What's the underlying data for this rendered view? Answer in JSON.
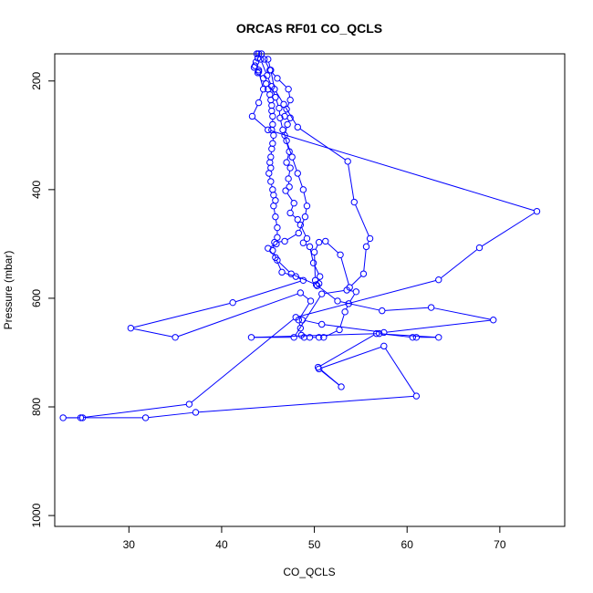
{
  "chart_data": {
    "type": "line",
    "title": "ORCAS RF01 CO_QCLS",
    "xlabel": "CO_QCLS",
    "ylabel": "Pressure (mbar)",
    "xlim": [
      22,
      77
    ],
    "ylim": [
      1020,
      150
    ],
    "y_reversed": true,
    "x_ticks": [
      30,
      40,
      50,
      60,
      70
    ],
    "y_ticks": [
      200,
      400,
      600,
      800,
      1000
    ],
    "grid": false,
    "legend": "none",
    "color": "#0000ff",
    "series": [
      {
        "points": [
          [
            43.8,
            150
          ],
          [
            43.9,
            158
          ],
          [
            43.7,
            165
          ],
          [
            43.6,
            172
          ],
          [
            44.0,
            180
          ],
          [
            43.9,
            185
          ],
          [
            44.5,
            195
          ],
          [
            44.8,
            205
          ],
          [
            45.0,
            215
          ],
          [
            45.2,
            225
          ],
          [
            45.3,
            235
          ],
          [
            45.4,
            245
          ],
          [
            45.4,
            255
          ],
          [
            45.5,
            265
          ],
          [
            45.5,
            280
          ],
          [
            45.4,
            290
          ],
          [
            45.6,
            300
          ],
          [
            45.5,
            315
          ],
          [
            45.4,
            325
          ],
          [
            45.3,
            340
          ],
          [
            45.2,
            350
          ],
          [
            45.3,
            360
          ],
          [
            45.1,
            370
          ],
          [
            45.3,
            385
          ],
          [
            45.5,
            400
          ],
          [
            45.6,
            410
          ],
          [
            45.8,
            420
          ],
          [
            45.6,
            430
          ],
          [
            45.8,
            450
          ],
          [
            46.0,
            470
          ],
          [
            46.0,
            488
          ],
          [
            45.9,
            500
          ],
          [
            45.0,
            508
          ],
          [
            45.8,
            525
          ],
          [
            46.5,
            552
          ],
          [
            48.0,
            560
          ],
          [
            48.8,
            567
          ],
          [
            41.2,
            608
          ],
          [
            30.2,
            655
          ],
          [
            35.0,
            672
          ],
          [
            48.5,
            590
          ],
          [
            49.6,
            605
          ],
          [
            48.3,
            640
          ],
          [
            48.5,
            655
          ],
          [
            48.6,
            668
          ],
          [
            48.9,
            672
          ],
          [
            49.5,
            672
          ],
          [
            50.5,
            672
          ],
          [
            51.0,
            672
          ],
          [
            52.7,
            658
          ],
          [
            53.3,
            625
          ],
          [
            53.7,
            610
          ],
          [
            54.5,
            588
          ],
          [
            53.5,
            585
          ],
          [
            50.8,
            592
          ],
          [
            47.8,
            672
          ],
          [
            43.2,
            672
          ],
          [
            57.0,
            665
          ],
          [
            60.6,
            672
          ],
          [
            61.0,
            672
          ],
          [
            63.4,
            672
          ],
          [
            56.7,
            665
          ],
          [
            50.4,
            727
          ],
          [
            52.9,
            763
          ],
          [
            50.5,
            730
          ],
          [
            57.5,
            688
          ],
          [
            61.0,
            780
          ],
          [
            37.2,
            810
          ],
          [
            31.8,
            820
          ],
          [
            25.0,
            820
          ],
          [
            22.9,
            820
          ],
          [
            24.8,
            820
          ],
          [
            36.5,
            795
          ],
          [
            48.0,
            635
          ],
          [
            63.4,
            566
          ],
          [
            67.8,
            507
          ],
          [
            74.0,
            440
          ],
          [
            45.0,
            290
          ],
          [
            43.3,
            265
          ],
          [
            44.0,
            240
          ],
          [
            44.5,
            215
          ],
          [
            44.0,
            183
          ],
          [
            43.5,
            175
          ]
        ]
      },
      {
        "points": [
          [
            44.3,
            150
          ],
          [
            44.6,
            160
          ],
          [
            45.2,
            180
          ],
          [
            46.0,
            195
          ],
          [
            47.2,
            215
          ],
          [
            47.4,
            235
          ],
          [
            47.0,
            252
          ],
          [
            46.8,
            265
          ],
          [
            47.4,
            268
          ],
          [
            47.1,
            280
          ],
          [
            46.8,
            300
          ],
          [
            47.3,
            330
          ],
          [
            47.0,
            350
          ],
          [
            47.4,
            360
          ],
          [
            47.2,
            380
          ],
          [
            47.3,
            395
          ],
          [
            46.9,
            402
          ],
          [
            47.8,
            425
          ],
          [
            47.4,
            443
          ],
          [
            48.2,
            455
          ],
          [
            48.5,
            465
          ],
          [
            49.2,
            490
          ],
          [
            48.8,
            498
          ],
          [
            49.5,
            505
          ],
          [
            49.9,
            535
          ],
          [
            50.6,
            560
          ],
          [
            50.5,
            573
          ],
          [
            50.3,
            577
          ],
          [
            50.1,
            567
          ],
          [
            50.0,
            515
          ],
          [
            50.5,
            497
          ],
          [
            51.2,
            495
          ],
          [
            52.8,
            520
          ],
          [
            53.8,
            580
          ],
          [
            55.3,
            555
          ],
          [
            55.6,
            505
          ],
          [
            56.0,
            490
          ],
          [
            54.3,
            423
          ],
          [
            53.6,
            348
          ],
          [
            48.2,
            285
          ],
          [
            46.7,
            243
          ],
          [
            45.7,
            215
          ],
          [
            45.3,
            180
          ],
          [
            45.0,
            160
          ]
        ]
      },
      {
        "points": [
          [
            44.0,
            150
          ],
          [
            44.2,
            160
          ],
          [
            44.9,
            190
          ],
          [
            45.4,
            210
          ],
          [
            45.8,
            230
          ],
          [
            46.2,
            250
          ],
          [
            46.3,
            268
          ],
          [
            46.6,
            290
          ],
          [
            47.0,
            310
          ],
          [
            47.6,
            340
          ],
          [
            48.2,
            370
          ],
          [
            48.8,
            400
          ],
          [
            49.2,
            430
          ],
          [
            49.0,
            450
          ],
          [
            48.3,
            480
          ],
          [
            46.8,
            495
          ],
          [
            45.7,
            497
          ],
          [
            45.5,
            512
          ],
          [
            46.0,
            530
          ],
          [
            47.5,
            555
          ],
          [
            50.2,
            575
          ],
          [
            52.5,
            605
          ],
          [
            57.3,
            623
          ],
          [
            62.6,
            617
          ],
          [
            69.3,
            640
          ],
          [
            57.5,
            663
          ],
          [
            50.8,
            648
          ],
          [
            48.7,
            640
          ]
        ]
      }
    ]
  }
}
